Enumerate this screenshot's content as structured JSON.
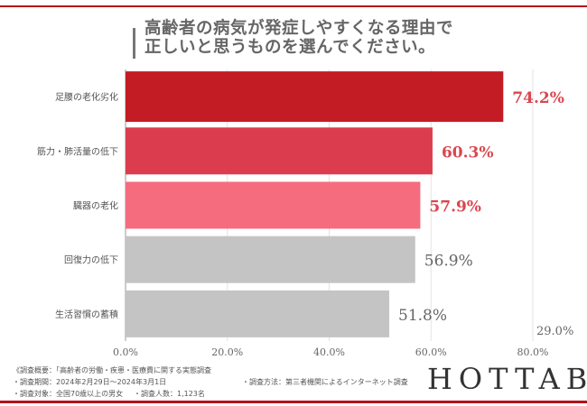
{
  "title": {
    "line1": "高齢者の病気が発症しやすくなる理由で",
    "line2": "正しいと思うものを選んでください。"
  },
  "chart_data": {
    "type": "bar",
    "orientation": "horizontal",
    "categories": [
      "足腰の老化劣化",
      "筋力・肺活量の低下",
      "臓器の老化",
      "回復力の低下",
      "生活習慣の蓄積"
    ],
    "values": [
      74.2,
      60.3,
      57.9,
      56.9,
      51.8
    ],
    "value_labels": [
      "74.2%",
      "60.3%",
      "57.9%",
      "56.9%",
      "51.8%"
    ],
    "bar_colors": [
      "#c41c24",
      "#dc3d4e",
      "#f56c7e",
      "#c4c4c4",
      "#c4c4c4"
    ],
    "label_colors": [
      "#d9474f",
      "#d9474f",
      "#d9474f",
      "#666666",
      "#666666"
    ],
    "xlim": [
      0,
      80
    ],
    "x_ticks": [
      "0.0%",
      "20.0%",
      "40.0%",
      "60.0%",
      "80.0%"
    ],
    "x_tick_values": [
      0,
      20,
      40,
      60,
      80
    ],
    "grid": true,
    "annotation": "29.0%"
  },
  "footer": {
    "overview": "《調査概要：「高齢者の労働・疾患・医療費に関する実態調査",
    "period": "・調査期間：2024年2月29日～2024年3月1日",
    "method": "・調査方法：第三者機関によるインターネット調査",
    "target": "・調査対象：全国70歳以上の男女",
    "count": "・調査人数：1,123名"
  },
  "logo": "HOTTAB",
  "colors": {
    "accent": "#b5121b"
  }
}
